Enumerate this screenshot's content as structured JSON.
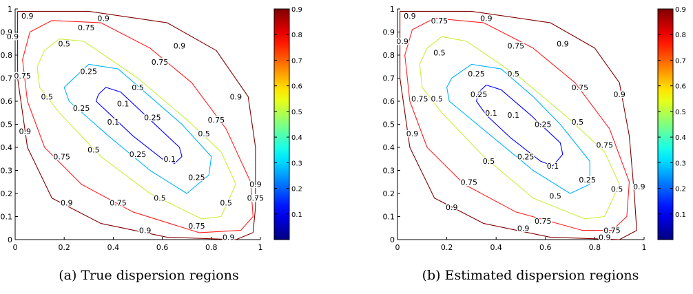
{
  "chart_data": [
    {
      "type": "contour",
      "caption": "(a) True dispersion regions",
      "xlim": [
        0,
        1
      ],
      "ylim": [
        0,
        1
      ],
      "xticks": [
        0,
        0.2,
        0.4,
        0.6,
        0.8,
        1
      ],
      "yticks": [
        0,
        0.1,
        0.2,
        0.3,
        0.4,
        0.5,
        0.6,
        0.7,
        0.8,
        0.9,
        1
      ],
      "xtick_labels": [
        "0",
        "0.2",
        "0.4",
        "0.6",
        "0.8",
        "1"
      ],
      "ytick_labels": [
        "0",
        "0.1",
        "0.2",
        "0.3",
        "0.4",
        "0.5",
        "0.6",
        "0.7",
        "0.8",
        "0.9",
        "1"
      ],
      "colormap": "jet",
      "colorbar": {
        "range": [
          0,
          0.9
        ],
        "ticks": [
          "0.1",
          "0.2",
          "0.3",
          "0.4",
          "0.5",
          "0.6",
          "0.7",
          "0.8",
          "0.9"
        ]
      },
      "levels": [
        {
          "level": 0.1,
          "label": "0.1",
          "color": "#0000ff",
          "path": [
            [
              0.34,
              0.63
            ],
            [
              0.37,
              0.66
            ],
            [
              0.43,
              0.64
            ],
            [
              0.55,
              0.52
            ],
            [
              0.67,
              0.4
            ],
            [
              0.68,
              0.36
            ],
            [
              0.65,
              0.33
            ],
            [
              0.6,
              0.35
            ],
            [
              0.48,
              0.45
            ],
            [
              0.38,
              0.55
            ],
            [
              0.33,
              0.6
            ],
            [
              0.34,
              0.63
            ]
          ],
          "labels_at": [
            [
              0.44,
              0.59
            ],
            [
              0.4,
              0.51
            ],
            [
              0.63,
              0.35
            ]
          ]
        },
        {
          "level": 0.25,
          "label": "0.25",
          "color": "#00b2ff",
          "path": [
            [
              0.24,
              0.7
            ],
            [
              0.3,
              0.76
            ],
            [
              0.42,
              0.74
            ],
            [
              0.55,
              0.62
            ],
            [
              0.68,
              0.5
            ],
            [
              0.8,
              0.36
            ],
            [
              0.79,
              0.28
            ],
            [
              0.7,
              0.2
            ],
            [
              0.55,
              0.3
            ],
            [
              0.38,
              0.45
            ],
            [
              0.22,
              0.6
            ],
            [
              0.2,
              0.66
            ],
            [
              0.24,
              0.7
            ]
          ],
          "labels_at": [
            [
              0.3,
              0.73
            ],
            [
              0.56,
              0.53
            ],
            [
              0.27,
              0.57
            ],
            [
              0.5,
              0.37
            ],
            [
              0.74,
              0.27
            ]
          ]
        },
        {
          "level": 0.5,
          "label": "0.5",
          "color": "#c8f03c",
          "path": [
            [
              0.12,
              0.82
            ],
            [
              0.18,
              0.87
            ],
            [
              0.28,
              0.86
            ],
            [
              0.5,
              0.7
            ],
            [
              0.7,
              0.52
            ],
            [
              0.84,
              0.38
            ],
            [
              0.9,
              0.24
            ],
            [
              0.84,
              0.1
            ],
            [
              0.76,
              0.09
            ],
            [
              0.55,
              0.2
            ],
            [
              0.35,
              0.36
            ],
            [
              0.18,
              0.55
            ],
            [
              0.1,
              0.66
            ],
            [
              0.09,
              0.75
            ],
            [
              0.12,
              0.82
            ]
          ],
          "labels_at": [
            [
              0.2,
              0.85
            ],
            [
              0.5,
              0.66
            ],
            [
              0.13,
              0.62
            ],
            [
              0.77,
              0.46
            ],
            [
              0.32,
              0.39
            ],
            [
              0.59,
              0.18
            ],
            [
              0.86,
              0.16
            ]
          ]
        },
        {
          "level": 0.75,
          "label": "0.75",
          "color": "#ff2020",
          "path": [
            [
              0.06,
              0.9
            ],
            [
              0.15,
              0.95
            ],
            [
              0.35,
              0.94
            ],
            [
              0.55,
              0.83
            ],
            [
              0.72,
              0.68
            ],
            [
              0.86,
              0.48
            ],
            [
              0.96,
              0.25
            ],
            [
              0.97,
              0.1
            ],
            [
              0.92,
              0.04
            ],
            [
              0.75,
              0.03
            ],
            [
              0.48,
              0.12
            ],
            [
              0.27,
              0.24
            ],
            [
              0.12,
              0.4
            ],
            [
              0.05,
              0.6
            ],
            [
              0.03,
              0.78
            ],
            [
              0.06,
              0.9
            ]
          ],
          "labels_at": [
            [
              0.29,
              0.92
            ],
            [
              0.59,
              0.77
            ],
            [
              0.03,
              0.71
            ],
            [
              0.82,
              0.52
            ],
            [
              0.19,
              0.36
            ],
            [
              0.98,
              0.18
            ],
            [
              0.42,
              0.16
            ],
            [
              0.74,
              0.06
            ]
          ]
        },
        {
          "level": 0.9,
          "label": "0.9",
          "color": "#800000",
          "path": [
            [
              0.01,
              0.99
            ],
            [
              0.3,
              0.99
            ],
            [
              0.62,
              0.94
            ],
            [
              0.82,
              0.82
            ],
            [
              0.95,
              0.62
            ],
            [
              0.98,
              0.4
            ],
            [
              0.98,
              0.14
            ],
            [
              0.97,
              0.03
            ],
            [
              0.9,
              0.0
            ],
            [
              0.62,
              0.01
            ],
            [
              0.35,
              0.07
            ],
            [
              0.15,
              0.18
            ],
            [
              0.05,
              0.4
            ],
            [
              0.01,
              0.7
            ],
            [
              0.01,
              0.99
            ]
          ],
          "labels_at": [
            [
              0.05,
              0.97
            ],
            [
              0.36,
              0.96
            ],
            [
              0.67,
              0.84
            ],
            [
              0.9,
              0.62
            ],
            [
              0.04,
              0.47
            ],
            [
              0.98,
              0.24
            ],
            [
              0.21,
              0.16
            ],
            [
              0.53,
              0.04
            ],
            [
              0.87,
              0.01
            ],
            [
              -0.01,
              0.88
            ]
          ]
        }
      ]
    },
    {
      "type": "contour",
      "caption": "(b) Estimated dispersion regions",
      "xlim": [
        0,
        1
      ],
      "ylim": [
        0,
        1
      ],
      "xticks": [
        0,
        0.2,
        0.4,
        0.6,
        0.8,
        1
      ],
      "yticks": [
        0,
        0.1,
        0.2,
        0.3,
        0.4,
        0.5,
        0.6,
        0.7,
        0.8,
        0.9,
        1
      ],
      "xtick_labels": [
        "0",
        "0.2",
        "0.4",
        "0.6",
        "0.8",
        "1"
      ],
      "ytick_labels": [
        "0",
        "0.1",
        "0.2",
        "0.3",
        "0.4",
        "0.5",
        "0.6",
        "0.7",
        "0.8",
        "0.9",
        "1"
      ],
      "colormap": "jet",
      "colorbar": {
        "range": [
          0,
          0.9
        ],
        "ticks": [
          "0.1",
          "0.2",
          "0.3",
          "0.4",
          "0.5",
          "0.6",
          "0.7",
          "0.8",
          "0.9"
        ]
      },
      "levels": [
        {
          "level": 0.1,
          "label": "0.1",
          "color": "#0000ff",
          "path": [
            [
              0.33,
              0.64
            ],
            [
              0.36,
              0.67
            ],
            [
              0.42,
              0.65
            ],
            [
              0.54,
              0.54
            ],
            [
              0.66,
              0.42
            ],
            [
              0.67,
              0.37
            ],
            [
              0.63,
              0.32
            ],
            [
              0.58,
              0.34
            ],
            [
              0.46,
              0.44
            ],
            [
              0.36,
              0.54
            ],
            [
              0.32,
              0.6
            ],
            [
              0.33,
              0.64
            ]
          ],
          "labels_at": [
            [
              0.38,
              0.55
            ],
            [
              0.47,
              0.54
            ],
            [
              0.63,
              0.32
            ]
          ]
        },
        {
          "level": 0.25,
          "label": "0.25",
          "color": "#00b2ff",
          "path": [
            [
              0.22,
              0.7
            ],
            [
              0.3,
              0.76
            ],
            [
              0.42,
              0.74
            ],
            [
              0.55,
              0.62
            ],
            [
              0.66,
              0.5
            ],
            [
              0.78,
              0.34
            ],
            [
              0.78,
              0.24
            ],
            [
              0.7,
              0.2
            ],
            [
              0.55,
              0.3
            ],
            [
              0.38,
              0.45
            ],
            [
              0.21,
              0.6
            ],
            [
              0.2,
              0.66
            ],
            [
              0.22,
              0.7
            ]
          ],
          "labels_at": [
            [
              0.32,
              0.72
            ],
            [
              0.33,
              0.63
            ],
            [
              0.59,
              0.5
            ],
            [
              0.52,
              0.36
            ],
            [
              0.77,
              0.26
            ]
          ]
        },
        {
          "level": 0.5,
          "label": "0.5",
          "color": "#c8f03c",
          "path": [
            [
              0.12,
              0.83
            ],
            [
              0.18,
              0.88
            ],
            [
              0.28,
              0.86
            ],
            [
              0.5,
              0.7
            ],
            [
              0.7,
              0.52
            ],
            [
              0.84,
              0.38
            ],
            [
              0.9,
              0.24
            ],
            [
              0.84,
              0.1
            ],
            [
              0.76,
              0.09
            ],
            [
              0.55,
              0.18
            ],
            [
              0.35,
              0.36
            ],
            [
              0.18,
              0.55
            ],
            [
              0.1,
              0.66
            ],
            [
              0.09,
              0.76
            ],
            [
              0.12,
              0.83
            ]
          ],
          "labels_at": [
            [
              0.17,
              0.81
            ],
            [
              0.47,
              0.72
            ],
            [
              0.16,
              0.61
            ],
            [
              0.73,
              0.51
            ],
            [
              0.37,
              0.34
            ],
            [
              0.64,
              0.19
            ],
            [
              0.89,
              0.22
            ]
          ]
        },
        {
          "level": 0.75,
          "label": "0.75",
          "color": "#ff2020",
          "path": [
            [
              0.06,
              0.91
            ],
            [
              0.15,
              0.96
            ],
            [
              0.35,
              0.94
            ],
            [
              0.55,
              0.83
            ],
            [
              0.72,
              0.68
            ],
            [
              0.86,
              0.48
            ],
            [
              0.94,
              0.25
            ],
            [
              0.93,
              0.1
            ],
            [
              0.87,
              0.04
            ],
            [
              0.75,
              0.04
            ],
            [
              0.48,
              0.12
            ],
            [
              0.27,
              0.24
            ],
            [
              0.12,
              0.4
            ],
            [
              0.05,
              0.6
            ],
            [
              0.03,
              0.8
            ],
            [
              0.06,
              0.91
            ]
          ],
          "labels_at": [
            [
              0.17,
              0.95
            ],
            [
              0.48,
              0.84
            ],
            [
              0.09,
              0.61
            ],
            [
              0.74,
              0.66
            ],
            [
              0.84,
              0.41
            ],
            [
              0.29,
              0.25
            ],
            [
              0.59,
              0.08
            ],
            [
              0.87,
              0.04
            ]
          ]
        },
        {
          "level": 0.9,
          "label": "0.9",
          "color": "#800000",
          "path": [
            [
              0.01,
              0.99
            ],
            [
              0.3,
              0.99
            ],
            [
              0.62,
              0.94
            ],
            [
              0.8,
              0.83
            ],
            [
              0.9,
              0.68
            ],
            [
              0.94,
              0.45
            ],
            [
              0.96,
              0.2
            ],
            [
              0.97,
              0.04
            ],
            [
              0.9,
              0.0
            ],
            [
              0.62,
              0.01
            ],
            [
              0.35,
              0.07
            ],
            [
              0.15,
              0.18
            ],
            [
              0.05,
              0.4
            ],
            [
              0.01,
              0.7
            ],
            [
              0.01,
              0.99
            ]
          ],
          "labels_at": [
            [
              0.05,
              0.97
            ],
            [
              0.36,
              0.96
            ],
            [
              0.67,
              0.85
            ],
            [
              0.9,
              0.63
            ],
            [
              0.06,
              0.46
            ],
            [
              0.98,
              0.23
            ],
            [
              0.22,
              0.14
            ],
            [
              0.51,
              0.05
            ],
            [
              0.84,
              0.01
            ],
            [
              0.02,
              0.86
            ]
          ]
        }
      ]
    }
  ]
}
